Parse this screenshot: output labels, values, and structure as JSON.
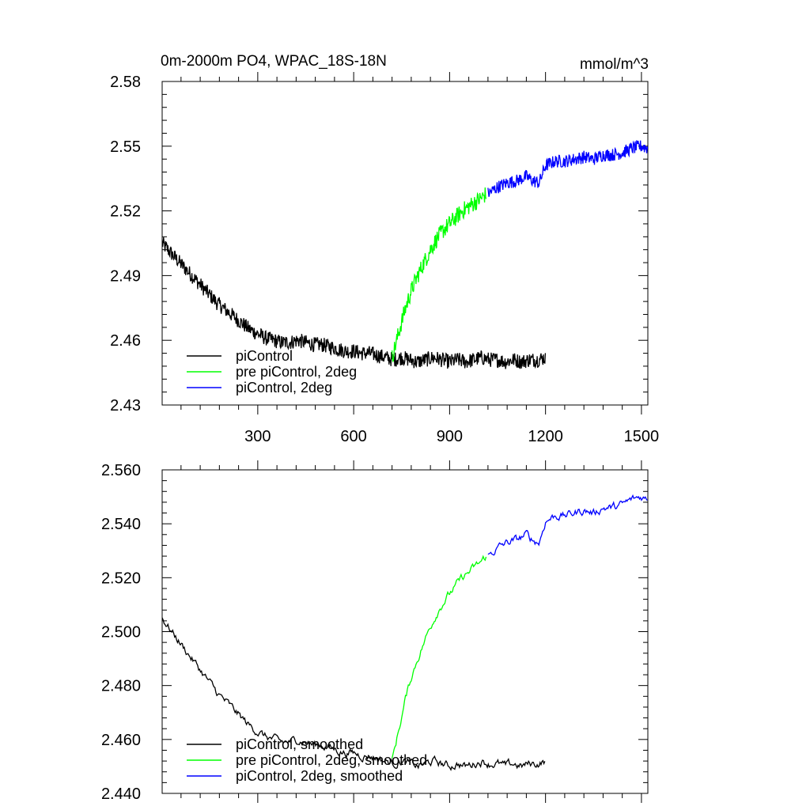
{
  "header": {
    "title": "0m-2000m PO4, WPAC_18S-18N",
    "units": "mmol/m^3"
  },
  "chart_data": [
    {
      "type": "line",
      "title": "0m-2000m PO4, WPAC_18S-18N",
      "units": "mmol/m^3",
      "xlabel": "",
      "ylabel": "",
      "xlim": [
        1,
        1520
      ],
      "ylim": [
        2.43,
        2.58
      ],
      "x_ticks": [
        300,
        600,
        900,
        1200,
        1500
      ],
      "x_tick_labels": [
        "300",
        "600",
        "900",
        "1200",
        "1500"
      ],
      "y_ticks": [
        2.43,
        2.46,
        2.49,
        2.52,
        2.55,
        2.58
      ],
      "y_tick_labels": [
        "2.43",
        "2.46",
        "2.49",
        "2.52",
        "2.55",
        "2.58"
      ],
      "grid": false,
      "legend_position": "bottom-left",
      "series": [
        {
          "name": "piControl",
          "color": "#000000",
          "x": [
            1,
            25,
            50,
            75,
            100,
            125,
            150,
            175,
            200,
            225,
            250,
            275,
            300,
            325,
            350,
            375,
            400,
            425,
            450,
            475,
            500,
            525,
            550,
            575,
            600,
            625,
            650,
            675,
            700,
            725,
            750,
            775,
            800,
            825,
            850,
            875,
            900,
            925,
            950,
            975,
            1000,
            1025,
            1050,
            1075,
            1100,
            1125,
            1150,
            1175,
            1200
          ],
          "values": [
            2.505,
            2.501,
            2.497,
            2.493,
            2.489,
            2.485,
            2.481,
            2.477,
            2.474,
            2.471,
            2.468,
            2.465,
            2.463,
            2.461,
            2.46,
            2.459,
            2.459,
            2.46,
            2.459,
            2.458,
            2.458,
            2.457,
            2.456,
            2.455,
            2.455,
            2.454,
            2.454,
            2.453,
            2.452,
            2.451,
            2.452,
            2.451,
            2.45,
            2.451,
            2.452,
            2.451,
            2.45,
            2.451,
            2.45,
            2.451,
            2.452,
            2.451,
            2.451,
            2.45,
            2.451,
            2.45,
            2.451,
            2.451,
            2.452
          ],
          "noise": 0.0035
        },
        {
          "name": "pre piControl, 2deg",
          "color": "#00ff00",
          "x": [
            720,
            740,
            760,
            780,
            800,
            820,
            840,
            860,
            880,
            900,
            920,
            940,
            960,
            980,
            1000,
            1015
          ],
          "values": [
            2.452,
            2.463,
            2.474,
            2.483,
            2.49,
            2.496,
            2.502,
            2.507,
            2.511,
            2.514,
            2.517,
            2.52,
            2.522,
            2.524,
            2.526,
            2.528
          ],
          "noise": 0.004
        },
        {
          "name": "piControl, 2deg",
          "color": "#0000ff",
          "x": [
            1020,
            1050,
            1080,
            1110,
            1140,
            1160,
            1180,
            1200,
            1230,
            1260,
            1290,
            1320,
            1350,
            1380,
            1410,
            1440,
            1470,
            1500,
            1520
          ],
          "values": [
            2.528,
            2.531,
            2.533,
            2.534,
            2.536,
            2.534,
            2.533,
            2.541,
            2.543,
            2.543,
            2.544,
            2.545,
            2.544,
            2.546,
            2.546,
            2.547,
            2.549,
            2.55,
            2.549
          ],
          "noise": 0.003
        }
      ]
    },
    {
      "type": "line",
      "xlim": [
        1,
        1520
      ],
      "ylim": [
        2.44,
        2.56
      ],
      "x_ticks": [
        300,
        600,
        900,
        1200,
        1500
      ],
      "y_ticks": [
        2.44,
        2.46,
        2.48,
        2.5,
        2.52,
        2.54,
        2.56
      ],
      "y_tick_labels": [
        "2.440",
        "2.460",
        "2.480",
        "2.500",
        "2.520",
        "2.540",
        "2.560"
      ],
      "grid": false,
      "legend_position": "bottom-left",
      "series": [
        {
          "name": "piControl, smoothed",
          "color": "#000000",
          "x": [
            1,
            25,
            50,
            75,
            100,
            125,
            150,
            175,
            200,
            225,
            250,
            275,
            300,
            325,
            350,
            375,
            400,
            425,
            450,
            475,
            500,
            525,
            550,
            575,
            600,
            625,
            650,
            675,
            700,
            725,
            750,
            775,
            800,
            825,
            850,
            875,
            900,
            925,
            950,
            975,
            1000,
            1025,
            1050,
            1075,
            1100,
            1125,
            1150,
            1175,
            1200
          ],
          "values": [
            2.505,
            2.501,
            2.497,
            2.493,
            2.489,
            2.485,
            2.481,
            2.477,
            2.474,
            2.471,
            2.468,
            2.465,
            2.463,
            2.461,
            2.46,
            2.459,
            2.459,
            2.46,
            2.459,
            2.458,
            2.458,
            2.457,
            2.456,
            2.455,
            2.455,
            2.454,
            2.454,
            2.453,
            2.452,
            2.451,
            2.452,
            2.451,
            2.45,
            2.451,
            2.452,
            2.451,
            2.45,
            2.451,
            2.45,
            2.451,
            2.452,
            2.451,
            2.451,
            2.45,
            2.451,
            2.45,
            2.451,
            2.451,
            2.452
          ],
          "noise": 0.0015
        },
        {
          "name": "pre piControl, 2deg, smoothed",
          "color": "#00ff00",
          "x": [
            720,
            740,
            760,
            780,
            800,
            820,
            840,
            860,
            880,
            900,
            920,
            940,
            960,
            980,
            1000,
            1015
          ],
          "values": [
            2.452,
            2.463,
            2.474,
            2.483,
            2.49,
            2.496,
            2.502,
            2.507,
            2.511,
            2.514,
            2.517,
            2.52,
            2.522,
            2.524,
            2.526,
            2.528
          ],
          "noise": 0.0015
        },
        {
          "name": "piControl, 2deg, smoothed",
          "color": "#0000ff",
          "x": [
            1020,
            1050,
            1080,
            1110,
            1140,
            1160,
            1180,
            1200,
            1230,
            1260,
            1290,
            1320,
            1350,
            1380,
            1410,
            1440,
            1470,
            1500,
            1520
          ],
          "values": [
            2.528,
            2.531,
            2.533,
            2.534,
            2.536,
            2.534,
            2.533,
            2.541,
            2.543,
            2.543,
            2.544,
            2.545,
            2.544,
            2.546,
            2.546,
            2.547,
            2.549,
            2.55,
            2.549
          ],
          "noise": 0.0015
        }
      ]
    }
  ]
}
